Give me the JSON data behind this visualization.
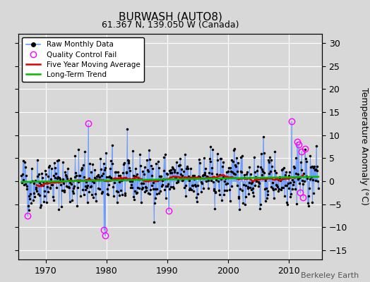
{
  "title": "BURWASH (AUTO8)",
  "subtitle": "61.367 N, 139.050 W (Canada)",
  "ylabel": "Temperature Anomaly (°C)",
  "credit": "Berkeley Earth",
  "ylim": [
    -17,
    32
  ],
  "yticks": [
    -15,
    -10,
    -5,
    0,
    5,
    10,
    15,
    20,
    25,
    30
  ],
  "xlim": [
    1965.5,
    2015.5
  ],
  "xticks": [
    1970,
    1980,
    1990,
    2000,
    2010
  ],
  "start_year": 1966,
  "end_year": 2014,
  "bg_color": "#d8d8d8",
  "line_color": "#6699ff",
  "ma_color": "#dd0000",
  "trend_color": "#00bb00",
  "qc_color": "#ff00ff",
  "seed": 42
}
